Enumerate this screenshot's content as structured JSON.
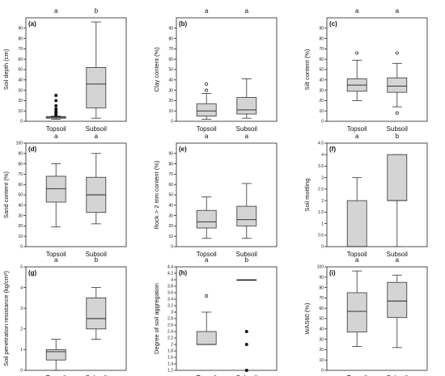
{
  "chart_data": [
    {
      "panel": "(a)",
      "type": "box",
      "ylabel": "Soil depth (cm)",
      "ylim": [
        0,
        100
      ],
      "yticks": [
        0,
        10,
        20,
        30,
        40,
        50,
        60,
        70,
        80,
        90
      ],
      "categories": [
        "Topsoil",
        "Subsoil"
      ],
      "letters": [
        "a",
        "b"
      ],
      "boxes": [
        {
          "min": 2,
          "q1": 3,
          "median": 4,
          "q3": 4.5,
          "max": 5,
          "outliers": [
            6,
            7,
            8,
            9,
            10,
            12,
            15,
            20,
            25
          ]
        },
        {
          "min": 3,
          "q1": 13,
          "median": 36,
          "q3": 52,
          "max": 96,
          "outliers": []
        }
      ]
    },
    {
      "panel": "(b)",
      "type": "box",
      "ylabel": "Clay content (%)",
      "ylim": [
        0,
        100
      ],
      "yticks": [
        0,
        10,
        20,
        30,
        40,
        50,
        60,
        70,
        80,
        90
      ],
      "categories": [
        "Topsoil",
        "Subsoil"
      ],
      "letters": [
        "a",
        "a"
      ],
      "boxes": [
        {
          "min": 2,
          "q1": 5,
          "median": 10,
          "q3": 17,
          "max": 27,
          "outliers": [
            30,
            36
          ]
        },
        {
          "min": 3,
          "q1": 7,
          "median": 11,
          "q3": 23,
          "max": 41,
          "outliers": []
        }
      ]
    },
    {
      "panel": "(c)",
      "type": "box",
      "ylabel": "Silt content (%)",
      "ylim": [
        0,
        100
      ],
      "yticks": [
        0,
        10,
        20,
        30,
        40,
        50,
        60,
        70,
        80,
        90
      ],
      "categories": [
        "Topsoil",
        "Subsoil"
      ],
      "letters": [
        "a",
        "a"
      ],
      "boxes": [
        {
          "min": 20,
          "q1": 29,
          "median": 35,
          "q3": 41,
          "max": 59,
          "outliers": [
            66
          ]
        },
        {
          "min": 14,
          "q1": 28,
          "median": 34,
          "q3": 42,
          "max": 56,
          "outliers": [
            66,
            8
          ]
        }
      ]
    },
    {
      "panel": "(d)",
      "type": "box",
      "ylabel": "Sand content (%)",
      "ylim": [
        0,
        100
      ],
      "yticks": [
        0,
        10,
        20,
        30,
        40,
        50,
        60,
        70,
        80,
        90,
        100
      ],
      "categories": [
        "Topsoil",
        "Subsoil"
      ],
      "letters": [
        "a",
        "a"
      ],
      "boxes": [
        {
          "min": 19,
          "q1": 43,
          "median": 56,
          "q3": 68,
          "max": 80,
          "outliers": []
        },
        {
          "min": 22,
          "q1": 33,
          "median": 50,
          "q3": 67,
          "max": 90,
          "outliers": []
        }
      ]
    },
    {
      "panel": "(e)",
      "type": "box",
      "ylabel": "Rock > 2 mm content (%)",
      "ylim": [
        0,
        100
      ],
      "yticks": [
        0,
        10,
        20,
        30,
        40,
        50,
        60,
        70,
        80,
        90
      ],
      "categories": [
        "Topsoil",
        "Subsoil"
      ],
      "letters": [
        "a",
        "a"
      ],
      "boxes": [
        {
          "min": 8,
          "q1": 18,
          "median": 24,
          "q3": 35,
          "max": 48,
          "outliers": []
        },
        {
          "min": 8,
          "q1": 20,
          "median": 26,
          "q3": 39,
          "max": 61,
          "outliers": []
        }
      ]
    },
    {
      "panel": "(f)",
      "type": "box",
      "ylabel": "Soil mottling",
      "ylim": [
        0,
        4.5
      ],
      "yticks": [
        0.0,
        0.5,
        1.0,
        1.5,
        2.0,
        2.5,
        3.0,
        3.5,
        4.0,
        4.5
      ],
      "categories": [
        "Topsoil",
        "Subsoil"
      ],
      "letters": [
        "a",
        "b"
      ],
      "boxes": [
        {
          "min": 0,
          "q1": 0,
          "median": 0,
          "q3": 2,
          "max": 3,
          "outliers": []
        },
        {
          "min": 0,
          "q1": 2,
          "median": 2,
          "q3": 4,
          "max": 4,
          "outliers": []
        }
      ]
    },
    {
      "panel": "(g)",
      "type": "box",
      "ylabel": "Soil penetration resistance (kg/cm²)",
      "ylim": [
        0,
        5
      ],
      "yticks": [
        0,
        1,
        2,
        3,
        4,
        5
      ],
      "categories": [
        "Topsoil",
        "Subsoil"
      ],
      "letters": [
        "a",
        "b"
      ],
      "boxes": [
        {
          "min": 0,
          "q1": 0.5,
          "median": 0.9,
          "q3": 1.0,
          "max": 1.5,
          "outliers": []
        },
        {
          "min": 1.5,
          "q1": 2.0,
          "median": 2.5,
          "q3": 3.5,
          "max": 4.0,
          "outliers": []
        }
      ]
    },
    {
      "panel": "(h)",
      "type": "box",
      "ylabel": "Degree of soil aggregation",
      "ylim": [
        1.2,
        4.4
      ],
      "yticks": [
        1.2,
        1.4,
        1.6,
        1.8,
        2.0,
        2.2,
        2.4,
        2.6,
        2.8,
        3.0,
        3.2,
        3.4,
        3.6,
        3.8,
        4.0,
        4.2,
        4.4
      ],
      "categories": [
        "Topsoil",
        "Subsoil"
      ],
      "letters": [
        "a",
        "b"
      ],
      "boxes": [
        {
          "min": 2.0,
          "q1": 2.0,
          "median": 2.0,
          "q3": 2.4,
          "max": 3.0,
          "outliers": [
            3.5
          ]
        },
        {
          "min": 4.0,
          "q1": 4.0,
          "median": 4.0,
          "q3": 4.0,
          "max": 4.0,
          "outliers": [
            2.4,
            2.0,
            1.2
          ]
        }
      ]
    },
    {
      "panel": "(i)",
      "type": "box",
      "ylabel": "WAS60 (%)",
      "ylim": [
        0,
        100
      ],
      "yticks": [
        0,
        10,
        20,
        30,
        40,
        50,
        60,
        70,
        80,
        90,
        100
      ],
      "categories": [
        "Topsoil",
        "Subsoil"
      ],
      "letters": [
        "a",
        "a"
      ],
      "boxes": [
        {
          "min": 23,
          "q1": 37,
          "median": 57,
          "q3": 75,
          "max": 96,
          "outliers": []
        },
        {
          "min": 22,
          "q1": 51,
          "median": 67,
          "q3": 85,
          "max": 92,
          "outliers": []
        }
      ]
    }
  ]
}
